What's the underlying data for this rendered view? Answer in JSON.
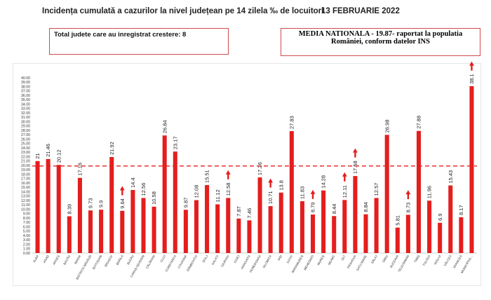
{
  "header": {
    "title": "Incidența cumulată a cazurilor la nivel județean pe 14 zilela ‰ de locuitori",
    "date": "13 FEBRUARIE 2022"
  },
  "info_box_left": {
    "text": "Total judete care au inregistrat crestere: 8"
  },
  "info_box_right": {
    "line1": "MEDIA NATIONALA - 19.87-  raportat la populatia",
    "line2": "României, conform datelor INS"
  },
  "colors": {
    "bar": "#e41e1e",
    "reference_line": "#e41e1e",
    "arrow": "#e41e1e"
  },
  "chart_data": {
    "type": "bar",
    "categories": [
      "ALBA",
      "ARAD",
      "ARGEȘ",
      "BACĂU",
      "BIHOR",
      "BISTRIȚA-NĂSĂUD",
      "BOTOȘANI",
      "BRAȘOV",
      "BRĂILA",
      "BUZĂU",
      "CARAȘ-SEVERIN",
      "CĂLĂRAȘI",
      "CLUJ",
      "CONSTANȚA",
      "COVASNA",
      "DÂMBOVIȚA",
      "DOLJ",
      "GALAȚI",
      "GIURGIU",
      "GORJ",
      "HARGHITA",
      "HUNEDOARA",
      "IALOMIȚA",
      "IAȘI",
      "ILFOV",
      "MARAMUREȘ",
      "MEHEDINȚI",
      "MUREȘ",
      "NEAMȚ",
      "OLT",
      "PRAHOVA",
      "SATU MARE",
      "SĂLAJ",
      "SIBIU",
      "SUCEAVA",
      "TELEORMAN",
      "TIMIȘ",
      "TULCEA",
      "VASLUI",
      "VÂLCEA",
      "VRANCEA",
      "MUNICIPIUL..."
    ],
    "values": [
      21,
      21.46,
      20.12,
      8.39,
      17.16,
      9.73,
      9.9,
      21.92,
      9.64,
      14.4,
      12.56,
      10.58,
      26.84,
      23.17,
      9.87,
      12.08,
      15.51,
      11.12,
      12.58,
      7.87,
      7.46,
      17.26,
      10.71,
      13.8,
      27.83,
      11.83,
      8.79,
      14.28,
      8.44,
      12.11,
      17.58,
      8.84,
      12.57,
      26.98,
      5.81,
      8.73,
      27.88,
      11.96,
      6.9,
      15.43,
      8.17,
      38.1
    ],
    "value_labels": [
      "21",
      "21.46",
      "20.12",
      "8.39",
      "17.16",
      "9.73",
      "9.9",
      "21.92",
      "9.64",
      "14.4",
      "12.56",
      "10.58",
      "26.84",
      "23.17",
      "9.87",
      "12.08",
      "15.51",
      "11.12",
      "12.58",
      "7.87",
      "7.46",
      "17.26",
      "10.71",
      "13.8",
      "27.83",
      "11.83",
      "8.79",
      "14.28",
      "8.44",
      "12.11",
      "17.58",
      "8.84",
      "12.57",
      "26.98",
      "5.81",
      "8.73",
      "27.88",
      "11.96",
      "6.9",
      "15.43",
      "8.17",
      "38.1"
    ],
    "increase_arrows": [
      "BRĂILA",
      "GIURGIU",
      "IALOMIȚA",
      "MEHEDINȚI",
      "OLT",
      "PRAHOVA",
      "TELEORMAN",
      "MUNICIPIUL..."
    ],
    "reference_value": 19.87,
    "ylim": [
      0,
      40
    ],
    "ytick_step": 1,
    "grid": false,
    "xlabel": "",
    "ylabel": ""
  }
}
